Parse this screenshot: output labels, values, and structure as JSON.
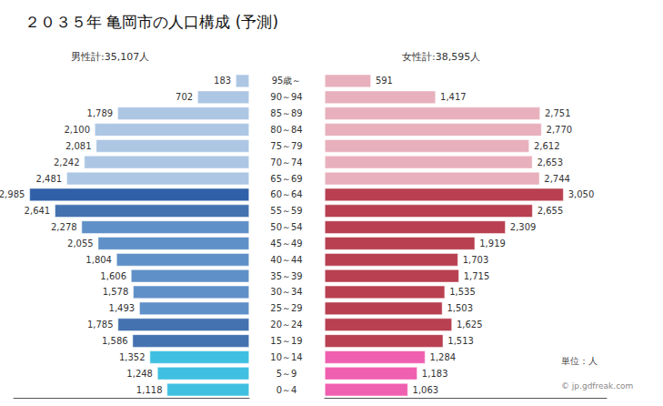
{
  "chart_data": {
    "type": "bar",
    "orientation": "horizontal",
    "title": "２０３５年 亀岡市の人口構成 (予測)",
    "annotations": [
      "単位：人",
      "© jp.gdfreak.com"
    ],
    "categories": [
      "0～4",
      "5～9",
      "10～14",
      "15～19",
      "20～24",
      "25～29",
      "30～34",
      "35～39",
      "40～44",
      "45～49",
      "50～54",
      "55～59",
      "60～64",
      "65～69",
      "70～74",
      "75～79",
      "80～84",
      "85～89",
      "90～94",
      "95歳～"
    ],
    "data_labels": true,
    "tick_labels": false,
    "grid": false,
    "series": [
      {
        "name": "男性計:35,107人",
        "values": [
          1118,
          1248,
          1352,
          1586,
          1785,
          1493,
          1578,
          1606,
          1804,
          2055,
          2278,
          2641,
          2985,
          2481,
          2242,
          2081,
          2100,
          1789,
          702,
          183
        ],
        "value_labels": [
          "1,118",
          "1,248",
          "1,352",
          "1,586",
          "1,785",
          "1,493",
          "1,578",
          "1,606",
          "1,804",
          "2,055",
          "2,278",
          "2,641",
          "2,985",
          "2,481",
          "2,242",
          "2,081",
          "2,100",
          "1,789",
          "702",
          "183"
        ],
        "colors": [
          "#40c0e0",
          "#40c0e0",
          "#40c0e0",
          "#4472b0",
          "#4472b0",
          "#6090c8",
          "#6090c8",
          "#6090c8",
          "#6090c8",
          "#6090c8",
          "#6090c8",
          "#4472b0",
          "#3060a8",
          "#adc6e4",
          "#adc6e4",
          "#adc6e4",
          "#adc6e4",
          "#adc6e4",
          "#adc6e4",
          "#adc6e4"
        ],
        "xlim": [
          0,
          3200
        ]
      },
      {
        "name": "女性計:38,595人",
        "values": [
          1063,
          1183,
          1284,
          1513,
          1625,
          1503,
          1535,
          1715,
          1703,
          1919,
          2309,
          2655,
          3050,
          2744,
          2653,
          2612,
          2770,
          2751,
          1417,
          591
        ],
        "value_labels": [
          "1,063",
          "1,183",
          "1,284",
          "1,513",
          "1,625",
          "1,503",
          "1,535",
          "1,715",
          "1,703",
          "1,919",
          "2,309",
          "2,655",
          "3,050",
          "2,744",
          "2,653",
          "2,612",
          "2,770",
          "2,751",
          "1,417",
          "591"
        ],
        "colors": [
          "#f060b0",
          "#f060b0",
          "#f060b0",
          "#b84050",
          "#b84050",
          "#b84050",
          "#b84050",
          "#b84050",
          "#b84050",
          "#b84050",
          "#b84050",
          "#b84050",
          "#b84050",
          "#e8b0bc",
          "#e8b0bc",
          "#e8b0bc",
          "#e8b0bc",
          "#e8b0bc",
          "#e8b0bc",
          "#e8b0bc"
        ],
        "xlim": [
          0,
          3600
        ]
      }
    ]
  }
}
